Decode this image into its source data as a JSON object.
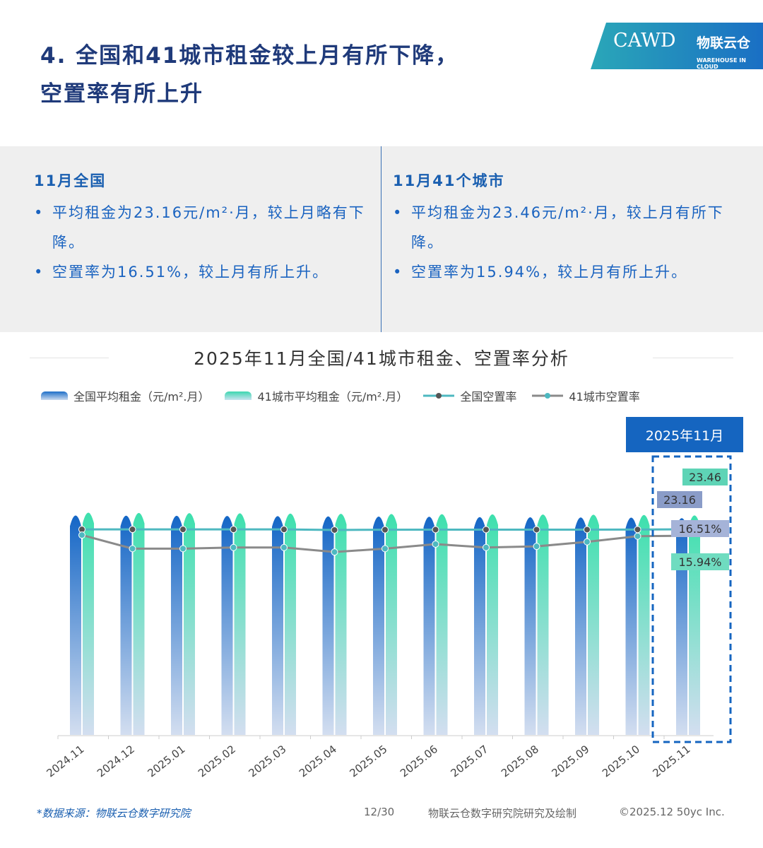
{
  "header": {
    "title_line1": "4. 全国和41城市租金较上月有所下降，",
    "title_line2": "空置率有所上升"
  },
  "logo": {
    "cawd": "CAWD",
    "cn": "物联云仓",
    "en": "WAREHOUSE IN CLOUD"
  },
  "summary": {
    "left": {
      "heading": "11月全国",
      "bullets": [
        "平均租金为23.16元/m²·月，较上月略有下降。",
        "空置率为16.51%，较上月有所上升。"
      ]
    },
    "right": {
      "heading": "11月41个城市",
      "bullets": [
        "平均租金为23.46元/m²·月，较上月有所下降。",
        "空置率为15.94%，较上月有所上升。"
      ]
    }
  },
  "highlight_label": "2025年11月",
  "colors": {
    "national_bar": "#1e6fc8",
    "city_bar": "#3dd6b0",
    "national_line": "#4db8c0",
    "city_line": "#8a8a8a"
  },
  "chart_data": {
    "type": "bar+line",
    "title": "2025年11月全国/41城市租金、空置率分析",
    "categories": [
      "2024.11",
      "2024.12",
      "2025.01",
      "2025.02",
      "2025.03",
      "2025.04",
      "2025.05",
      "2025.06",
      "2025.07",
      "2025.08",
      "2025.09",
      "2025.10",
      "2025.11"
    ],
    "series": [
      {
        "name": "全国平均租金（元/m².月）",
        "type": "bar",
        "values": [
          23.45,
          23.43,
          23.42,
          23.4,
          23.38,
          23.35,
          23.33,
          23.31,
          23.28,
          23.26,
          23.24,
          23.22,
          23.16
        ]
      },
      {
        "name": "41城市平均租金（元/m².月）",
        "type": "bar",
        "values": [
          23.75,
          23.72,
          23.7,
          23.68,
          23.66,
          23.63,
          23.61,
          23.59,
          23.57,
          23.55,
          23.53,
          23.5,
          23.46
        ]
      },
      {
        "name": "全国空置率",
        "type": "line",
        "values": [
          16.5,
          16.5,
          16.5,
          16.5,
          16.5,
          16.45,
          16.47,
          16.48,
          16.48,
          16.48,
          16.48,
          16.49,
          16.51
        ]
      },
      {
        "name": "41城市空置率",
        "type": "line",
        "values": [
          16.0,
          14.8,
          14.8,
          14.9,
          14.9,
          14.5,
          14.8,
          15.2,
          14.9,
          15.0,
          15.4,
          15.9,
          15.94
        ]
      }
    ],
    "data_labels": [
      "23.46",
      "23.16",
      "16.51%",
      "15.94%"
    ],
    "legend_position": "top",
    "grid": false
  },
  "footer": {
    "source": "*数据来源：物联云仓数字研究院",
    "page": "12/30",
    "credit": "物联云仓数字研究院研究及绘制",
    "copyright": "©2025.12 50yc Inc."
  }
}
